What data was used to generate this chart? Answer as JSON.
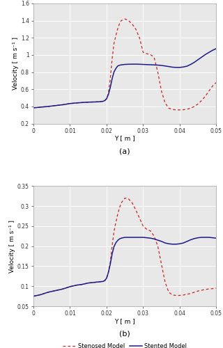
{
  "label_a": "(a)",
  "label_b": "(b)",
  "xlabel": "Y [ m ]",
  "ylabel_a": "Velocity [ m s⁻¹ ]",
  "ylabel_b": "Velocity [ m s⁻¹ ]",
  "xlim": [
    0,
    0.05
  ],
  "ylim_a": [
    0.2,
    1.6
  ],
  "ylim_b": [
    0.05,
    0.35
  ],
  "xticks": [
    0,
    0.01,
    0.02,
    0.03,
    0.04,
    0.05
  ],
  "yticks_a": [
    0.2,
    0.4,
    0.6,
    0.8,
    1.0,
    1.2,
    1.4,
    1.6
  ],
  "yticks_b": [
    0.05,
    0.1,
    0.15,
    0.2,
    0.25,
    0.3,
    0.35
  ],
  "stenosed_color": "#cc2222",
  "stented_color": "#1a1a88",
  "bg_color": "#e8e8e8",
  "legend_stenosed": "Stenosed Model",
  "legend_stented": "Stented Model",
  "stenosed_a_x": [
    0.0,
    0.001,
    0.002,
    0.003,
    0.004,
    0.005,
    0.006,
    0.007,
    0.008,
    0.009,
    0.01,
    0.011,
    0.012,
    0.013,
    0.014,
    0.015,
    0.016,
    0.017,
    0.018,
    0.019,
    0.0195,
    0.02,
    0.0205,
    0.021,
    0.0215,
    0.022,
    0.0225,
    0.023,
    0.0235,
    0.024,
    0.025,
    0.026,
    0.027,
    0.028,
    0.029,
    0.03,
    0.0305,
    0.031,
    0.0315,
    0.032,
    0.033,
    0.034,
    0.035,
    0.036,
    0.037,
    0.038,
    0.039,
    0.04,
    0.041,
    0.042,
    0.043,
    0.044,
    0.045,
    0.046,
    0.047,
    0.048,
    0.049,
    0.05
  ],
  "stenosed_a_y": [
    0.385,
    0.388,
    0.392,
    0.396,
    0.4,
    0.405,
    0.41,
    0.415,
    0.42,
    0.427,
    0.434,
    0.438,
    0.442,
    0.445,
    0.448,
    0.45,
    0.452,
    0.453,
    0.455,
    0.46,
    0.468,
    0.49,
    0.56,
    0.72,
    0.95,
    1.13,
    1.22,
    1.3,
    1.36,
    1.4,
    1.42,
    1.4,
    1.36,
    1.3,
    1.2,
    1.03,
    1.02,
    1.015,
    1.01,
    1.005,
    0.97,
    0.8,
    0.58,
    0.44,
    0.38,
    0.365,
    0.36,
    0.36,
    0.362,
    0.368,
    0.38,
    0.4,
    0.43,
    0.47,
    0.52,
    0.58,
    0.64,
    0.68
  ],
  "stented_a_x": [
    0.0,
    0.001,
    0.002,
    0.003,
    0.004,
    0.005,
    0.006,
    0.007,
    0.008,
    0.009,
    0.01,
    0.011,
    0.012,
    0.013,
    0.014,
    0.015,
    0.016,
    0.017,
    0.018,
    0.019,
    0.0195,
    0.02,
    0.0205,
    0.021,
    0.0215,
    0.022,
    0.0225,
    0.023,
    0.0235,
    0.024,
    0.025,
    0.026,
    0.027,
    0.028,
    0.029,
    0.03,
    0.031,
    0.032,
    0.033,
    0.034,
    0.035,
    0.036,
    0.037,
    0.038,
    0.039,
    0.04,
    0.041,
    0.042,
    0.043,
    0.044,
    0.045,
    0.046,
    0.047,
    0.048,
    0.049,
    0.05
  ],
  "stented_a_y": [
    0.385,
    0.388,
    0.392,
    0.396,
    0.4,
    0.405,
    0.41,
    0.415,
    0.42,
    0.427,
    0.434,
    0.438,
    0.442,
    0.445,
    0.448,
    0.45,
    0.452,
    0.453,
    0.455,
    0.46,
    0.468,
    0.49,
    0.54,
    0.62,
    0.72,
    0.8,
    0.84,
    0.87,
    0.88,
    0.885,
    0.89,
    0.892,
    0.893,
    0.893,
    0.892,
    0.89,
    0.888,
    0.886,
    0.884,
    0.882,
    0.878,
    0.872,
    0.865,
    0.858,
    0.855,
    0.855,
    0.86,
    0.87,
    0.89,
    0.915,
    0.945,
    0.975,
    1.005,
    1.03,
    1.055,
    1.075
  ],
  "stenosed_b_x": [
    0.0,
    0.001,
    0.002,
    0.003,
    0.004,
    0.005,
    0.006,
    0.007,
    0.008,
    0.009,
    0.01,
    0.011,
    0.012,
    0.013,
    0.014,
    0.015,
    0.016,
    0.017,
    0.018,
    0.019,
    0.0195,
    0.02,
    0.0205,
    0.021,
    0.0215,
    0.022,
    0.0225,
    0.023,
    0.0235,
    0.024,
    0.025,
    0.026,
    0.027,
    0.028,
    0.029,
    0.03,
    0.031,
    0.032,
    0.033,
    0.034,
    0.035,
    0.036,
    0.037,
    0.038,
    0.039,
    0.04,
    0.041,
    0.042,
    0.043,
    0.044,
    0.045,
    0.046,
    0.047,
    0.048,
    0.049,
    0.05
  ],
  "stenosed_b_y": [
    0.075,
    0.077,
    0.079,
    0.082,
    0.085,
    0.087,
    0.089,
    0.091,
    0.093,
    0.096,
    0.099,
    0.101,
    0.103,
    0.104,
    0.106,
    0.108,
    0.109,
    0.11,
    0.111,
    0.112,
    0.114,
    0.12,
    0.135,
    0.16,
    0.2,
    0.235,
    0.258,
    0.278,
    0.295,
    0.308,
    0.32,
    0.318,
    0.308,
    0.29,
    0.27,
    0.25,
    0.242,
    0.238,
    0.225,
    0.2,
    0.155,
    0.11,
    0.085,
    0.078,
    0.077,
    0.077,
    0.078,
    0.08,
    0.082,
    0.085,
    0.088,
    0.09,
    0.092,
    0.093,
    0.094,
    0.095
  ],
  "stented_b_x": [
    0.0,
    0.001,
    0.002,
    0.003,
    0.004,
    0.005,
    0.006,
    0.007,
    0.008,
    0.009,
    0.01,
    0.011,
    0.012,
    0.013,
    0.014,
    0.015,
    0.016,
    0.017,
    0.018,
    0.019,
    0.0195,
    0.02,
    0.0205,
    0.021,
    0.0215,
    0.022,
    0.0225,
    0.023,
    0.0235,
    0.024,
    0.025,
    0.026,
    0.027,
    0.028,
    0.029,
    0.03,
    0.031,
    0.032,
    0.033,
    0.034,
    0.035,
    0.036,
    0.037,
    0.038,
    0.039,
    0.04,
    0.041,
    0.042,
    0.043,
    0.044,
    0.045,
    0.046,
    0.047,
    0.048,
    0.049,
    0.05
  ],
  "stented_b_y": [
    0.075,
    0.077,
    0.079,
    0.082,
    0.085,
    0.087,
    0.089,
    0.091,
    0.093,
    0.096,
    0.099,
    0.101,
    0.103,
    0.104,
    0.106,
    0.108,
    0.109,
    0.11,
    0.111,
    0.112,
    0.114,
    0.12,
    0.135,
    0.155,
    0.18,
    0.198,
    0.208,
    0.214,
    0.218,
    0.22,
    0.222,
    0.222,
    0.222,
    0.222,
    0.222,
    0.222,
    0.221,
    0.22,
    0.218,
    0.215,
    0.212,
    0.208,
    0.206,
    0.205,
    0.205,
    0.206,
    0.208,
    0.212,
    0.216,
    0.219,
    0.221,
    0.222,
    0.222,
    0.222,
    0.221,
    0.22
  ]
}
